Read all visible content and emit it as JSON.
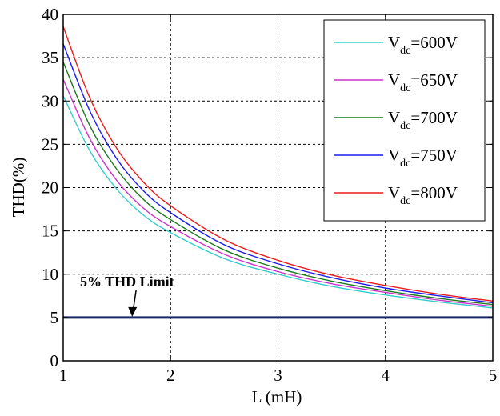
{
  "chart_data": {
    "type": "line",
    "xlabel": "L (mH)",
    "ylabel": "THD(%)",
    "xlim": [
      1,
      5
    ],
    "ylim": [
      0,
      40
    ],
    "xticks": [
      1,
      2,
      3,
      4,
      5
    ],
    "yticks": [
      0,
      5,
      10,
      15,
      20,
      25,
      30,
      35,
      40
    ],
    "grid": "dashed",
    "legend_position": "top-right",
    "x": [
      1,
      1.25,
      1.5,
      1.75,
      2,
      2.5,
      3,
      3.5,
      4,
      4.5,
      5
    ],
    "series": [
      {
        "name_main": "V",
        "name_sub": "dc",
        "name_rest": "=600V",
        "color": "#33cccc",
        "values": [
          30.6,
          24.2,
          19.8,
          16.8,
          14.8,
          11.8,
          10.0,
          8.6,
          7.6,
          6.8,
          6.1
        ]
      },
      {
        "name_main": "V",
        "name_sub": "dc",
        "name_rest": "=650V",
        "color": "#cc33cc",
        "values": [
          32.5,
          25.6,
          20.8,
          17.6,
          15.5,
          12.3,
          10.3,
          8.9,
          7.9,
          7.0,
          6.3
        ]
      },
      {
        "name_main": "V",
        "name_sub": "dc",
        "name_rest": "=700V",
        "color": "#1a7a1a",
        "values": [
          34.5,
          27.1,
          22.1,
          18.6,
          16.3,
          12.8,
          10.7,
          9.2,
          8.1,
          7.2,
          6.5
        ]
      },
      {
        "name_main": "V",
        "name_sub": "dc",
        "name_rest": "=750V",
        "color": "#1a1aee",
        "values": [
          36.6,
          28.8,
          23.3,
          19.6,
          17.1,
          13.4,
          11.2,
          9.6,
          8.4,
          7.5,
          6.7
        ]
      },
      {
        "name_main": "V",
        "name_sub": "dc",
        "name_rest": "=800V",
        "color": "#ee1a1a",
        "values": [
          38.6,
          30.3,
          24.5,
          20.6,
          17.9,
          14.0,
          11.6,
          9.9,
          8.7,
          7.7,
          6.9
        ]
      }
    ],
    "threshold": {
      "label": "5% THD Limit",
      "value": 5,
      "color": "#1a2a6b"
    },
    "annotation_arrow_x": 1.65
  }
}
